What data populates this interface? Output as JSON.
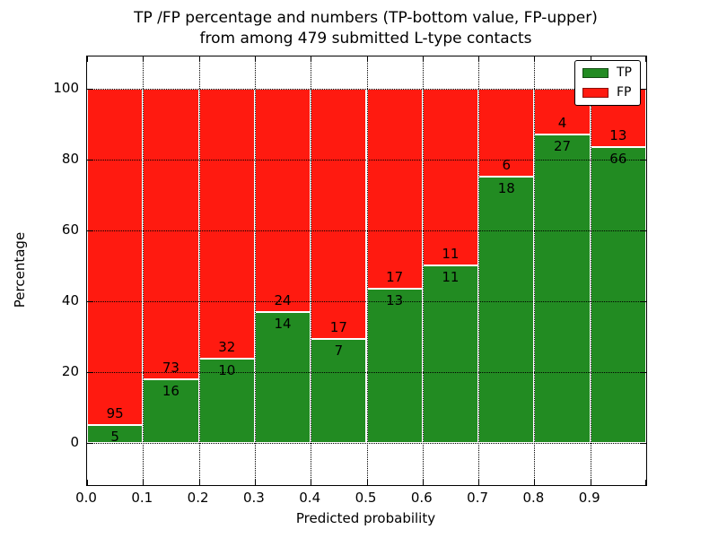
{
  "figure": {
    "title_line1": "TP /FP percentage and numbers (TP-bottom value, FP-upper)",
    "title_line2": "from among 479 submitted L-type contacts"
  },
  "chart_data": {
    "type": "bar",
    "stacked": true,
    "normalized": "each bar totals 100%",
    "title": "TP /FP percentage and numbers (TP-bottom value, FP-upper) from among 479 submitted L-type contacts",
    "xlabel": "Predicted probability",
    "ylabel": "Percentage",
    "total_contacts": 479,
    "categories": [
      "0.0-0.1",
      "0.1-0.2",
      "0.2-0.3",
      "0.3-0.4",
      "0.4-0.5",
      "0.5-0.6",
      "0.6-0.7",
      "0.7-0.8",
      "0.8-0.9",
      "0.9-1.0"
    ],
    "series": [
      {
        "name": "TP",
        "color": "#228b22",
        "counts": [
          5,
          16,
          10,
          14,
          7,
          13,
          11,
          18,
          27,
          66
        ]
      },
      {
        "name": "FP",
        "color": "#ff1a10",
        "counts": [
          95,
          73,
          32,
          24,
          17,
          17,
          11,
          6,
          4,
          13
        ]
      }
    ],
    "tp_percent": [
      5.0,
      18.0,
      23.8,
      36.8,
      29.2,
      43.3,
      50.0,
      75.0,
      87.1,
      83.5
    ],
    "x_tick_labels": [
      "0.0",
      "0.1",
      "0.2",
      "0.3",
      "0.4",
      "0.5",
      "0.6",
      "0.7",
      "0.8",
      "0.9"
    ],
    "y_tick_values": [
      0,
      20,
      40,
      60,
      80,
      100
    ],
    "y_tick_labels": [
      "0",
      "20",
      "40",
      "60",
      "80",
      "100"
    ],
    "xlim": [
      0,
      1
    ],
    "ylim": [
      -12,
      109
    ],
    "grid": "dotted, drawn over bars",
    "legend": {
      "position": "upper right",
      "entries": [
        {
          "label": "TP",
          "color": "#228b22"
        },
        {
          "label": "FP",
          "color": "#ff1a10"
        }
      ]
    }
  }
}
